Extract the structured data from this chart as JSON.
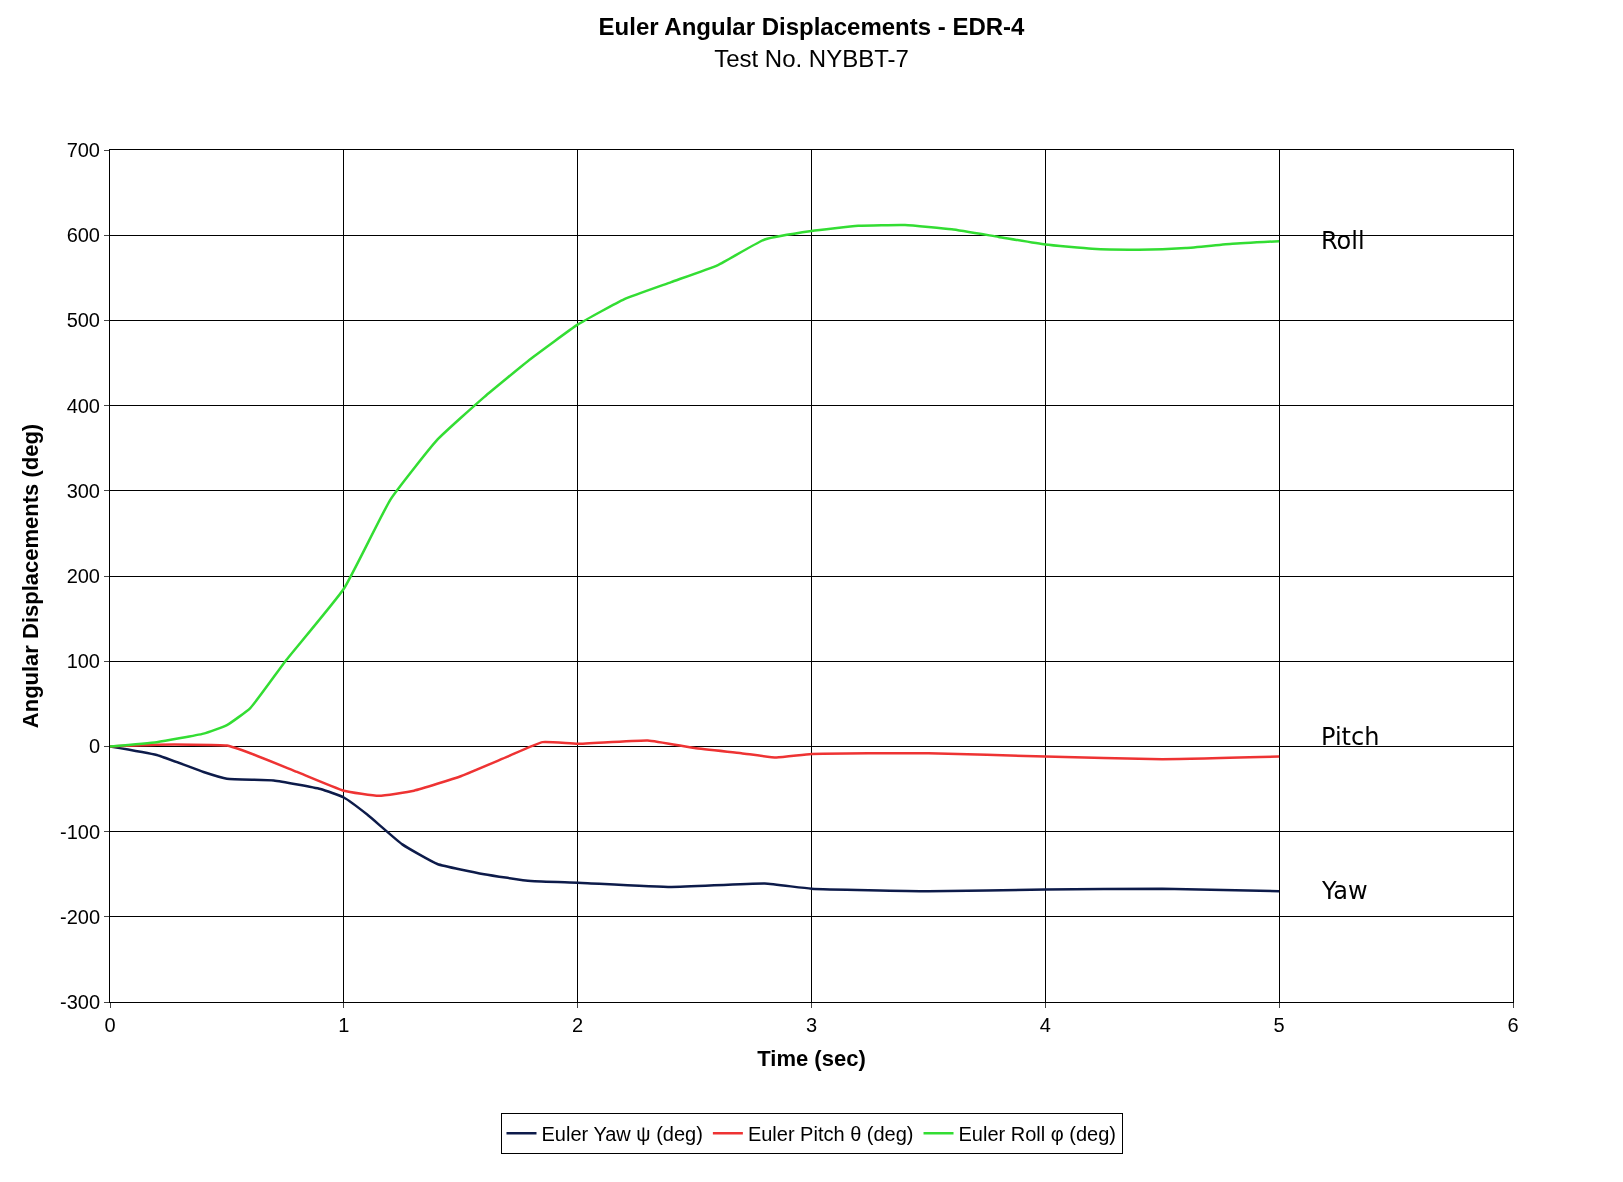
{
  "chart_data": {
    "type": "line",
    "title": "Euler Angular Displacements - EDR-4",
    "subtitle": "Test No. NYBBT-7",
    "xlabel": "Time (sec)",
    "ylabel": "Angular Displacements (deg)",
    "xlim": [
      0,
      6
    ],
    "xticks": [
      0,
      1,
      2,
      3,
      4,
      5,
      6
    ],
    "ylim": [
      -300,
      700
    ],
    "yticks": [
      -300,
      -200,
      -100,
      0,
      100,
      200,
      300,
      400,
      500,
      600,
      700
    ],
    "grid": true,
    "legend": "bottom",
    "marker": "none",
    "line_style": "solid",
    "series": [
      {
        "name": "Euler Yaw ψ (deg)",
        "color": "#0d1b4a",
        "x": [
          0,
          0.2,
          0.4,
          0.5,
          0.7,
          0.9,
          1.0,
          1.1,
          1.25,
          1.4,
          1.6,
          1.8,
          2.0,
          2.4,
          2.8,
          3.0,
          3.5,
          4.0,
          4.5,
          5.0
        ],
        "values": [
          0,
          -10,
          -30,
          -38,
          -40,
          -50,
          -60,
          -80,
          -115,
          -138,
          -150,
          -158,
          -160,
          -165,
          -161,
          -167,
          -170,
          -168,
          -167,
          -170
        ]
      },
      {
        "name": "Euler Pitch θ (deg)",
        "color": "#ee3333",
        "x": [
          0,
          0.2,
          0.5,
          0.6,
          0.8,
          1.0,
          1.15,
          1.3,
          1.5,
          1.7,
          1.85,
          2.0,
          2.3,
          2.5,
          2.7,
          2.85,
          3.0,
          3.5,
          4.0,
          4.5,
          5.0
        ],
        "values": [
          0,
          2,
          1,
          -8,
          -30,
          -52,
          -58,
          -52,
          -35,
          -12,
          5,
          3,
          7,
          -2,
          -8,
          -13,
          -9,
          -8,
          -12,
          -15,
          -12
        ]
      },
      {
        "name": "Euler Roll φ (deg)",
        "color": "#33dd33",
        "x": [
          0,
          0.2,
          0.4,
          0.5,
          0.6,
          0.75,
          1.0,
          1.2,
          1.4,
          1.6,
          1.8,
          2.0,
          2.2,
          2.4,
          2.6,
          2.8,
          3.0,
          3.2,
          3.4,
          3.6,
          3.8,
          4.0,
          4.2,
          4.4,
          4.6,
          4.8,
          5.0
        ],
        "values": [
          0,
          5,
          15,
          25,
          45,
          100,
          185,
          290,
          360,
          410,
          455,
          495,
          525,
          545,
          565,
          595,
          605,
          611,
          612,
          607,
          598,
          589,
          584,
          583,
          585,
          590,
          593
        ]
      }
    ],
    "annotations": [
      "Yaw",
      "Pitch",
      "Roll"
    ]
  }
}
